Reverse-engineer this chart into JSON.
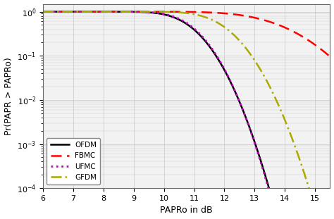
{
  "title": "",
  "xlabel": "PAPRo in dB",
  "ylabel": "Pr(PAPR > PAPRo)",
  "xlim": [
    6,
    15.5
  ],
  "grid_color": "#c8c8c8",
  "background_color": "#f2f2f2",
  "series": [
    {
      "label": "OFDM",
      "color": "#000000",
      "linestyle": "solid",
      "linewidth": 1.8,
      "mu": 10.8,
      "sigma": 0.72
    },
    {
      "label": "FBMC",
      "color": "#ff0000",
      "linestyle": "dashed",
      "linewidth": 1.8,
      "mu": 13.8,
      "sigma": 1.3
    },
    {
      "label": "UFMC",
      "color": "#cc00cc",
      "linestyle": "dotted",
      "linewidth": 2.0,
      "mu": 10.85,
      "sigma": 0.7
    },
    {
      "label": "GFDM",
      "color": "#aaaa00",
      "linestyle": "dashdot",
      "linewidth": 1.8,
      "mu": 11.9,
      "sigma": 0.78
    }
  ],
  "legend_loc": "lower left",
  "legend_fontsize": 7.5,
  "tick_fontsize": 8,
  "label_fontsize": 9,
  "xticks": [
    6,
    7,
    8,
    9,
    10,
    11,
    12,
    13,
    14,
    15
  ]
}
